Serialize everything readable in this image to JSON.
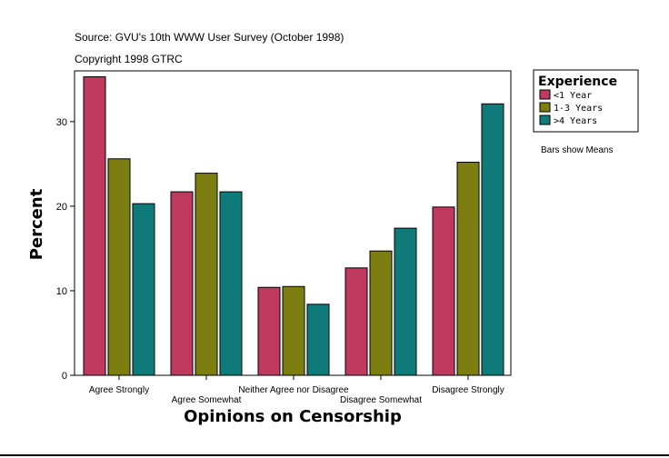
{
  "chart_data": {
    "type": "bar",
    "source_line": "Source: GVU's 10th WWW User Survey (October 1998)",
    "copyright_line": "Copyright 1998 GTRC",
    "xlabel": "Opinions on Censorship",
    "ylabel": "Percent",
    "ylim": [
      0,
      36
    ],
    "yticks": [
      0,
      10,
      20,
      30
    ],
    "grid": false,
    "legend_position": "top-right",
    "legend_title": "Experience",
    "note": "Bars show Means",
    "categories": [
      "Agree Strongly",
      "Agree Somewhat",
      "Neither Agree nor Disagree",
      "Disagree Somewhat",
      "Disagree Strongly"
    ],
    "series": [
      {
        "name": "<1 Year",
        "color": "#c0395f",
        "values": [
          35.3,
          21.7,
          10.4,
          12.7,
          19.9
        ]
      },
      {
        "name": "1-3 Years",
        "color": "#7e7e10",
        "values": [
          25.6,
          23.9,
          10.5,
          14.7,
          25.2
        ]
      },
      {
        "name": ">4 Years",
        "color": "#0f7a7a",
        "values": [
          20.3,
          21.7,
          8.4,
          17.4,
          32.1
        ]
      }
    ]
  }
}
